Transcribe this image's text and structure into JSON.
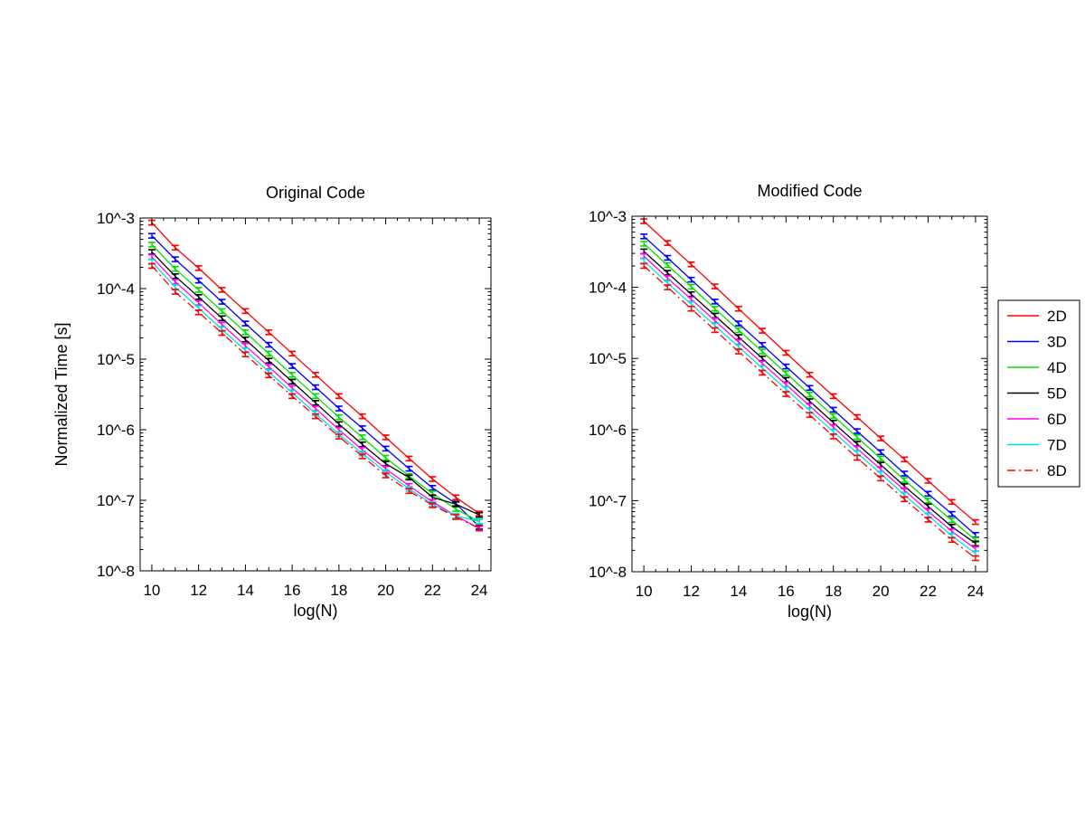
{
  "chart_data": [
    {
      "type": "line",
      "title": "Original Code",
      "xlabel": "log(N)",
      "ylabel": "Normalized Time [s]",
      "xlim": [
        9.5,
        24.5
      ],
      "x_ticks": [
        10,
        12,
        14,
        16,
        18,
        20,
        22,
        24
      ],
      "x_tick_labels": [
        "10",
        "12",
        "14",
        "16",
        "18",
        "20",
        "22",
        "24"
      ],
      "yscale": "log",
      "ylim": [
        1e-08,
        0.001
      ],
      "y_ticks": [
        0.001,
        0.0001,
        1e-05,
        1e-06,
        1e-07,
        1e-08
      ],
      "y_tick_labels": [
        "10^-3",
        "10^-4",
        "10^-5",
        "10^-6",
        "10^-7",
        "10^-8"
      ],
      "grid": false,
      "error_bars": true,
      "x": [
        10,
        11,
        12,
        13,
        14,
        15,
        16,
        17,
        18,
        19,
        20,
        21,
        22,
        23,
        24
      ],
      "series": [
        {
          "name": "2D",
          "color": "#ff0000",
          "dash": "solid",
          "values": [
            0.00086,
            0.00038,
            0.000195,
            9.6e-05,
            4.8e-05,
            2.4e-05,
            1.2e-05,
            6e-06,
            3e-06,
            1.55e-06,
            7.8e-07,
            3.9e-07,
            2e-07,
            1.1e-07,
            6.5e-08
          ]
        },
        {
          "name": "3D",
          "color": "#0000ff",
          "dash": "solid",
          "values": [
            0.00056,
            0.00026,
            0.00013,
            6.5e-05,
            3.2e-05,
            1.6e-05,
            8e-06,
            4e-06,
            2e-06,
            1.05e-06,
            5.4e-07,
            2.8e-07,
            1.5e-07,
            9e-08,
            4.2e-08
          ]
        },
        {
          "name": "4D",
          "color": "#00e000",
          "dash": "solid",
          "values": [
            0.00042,
            0.00019,
            9.6e-05,
            4.8e-05,
            2.4e-05,
            1.2e-05,
            6e-06,
            3e-06,
            1.5e-06,
            7.8e-07,
            4e-07,
            2.2e-07,
            1.25e-07,
            7.5e-08,
            5e-08
          ]
        },
        {
          "name": "5D",
          "color": "#000000",
          "dash": "solid",
          "values": [
            0.00033,
            0.00015,
            7.6e-05,
            3.8e-05,
            1.9e-05,
            9.5e-06,
            4.8e-06,
            2.4e-06,
            1.2e-06,
            6.2e-07,
            3.3e-07,
            2.1e-07,
            1.1e-07,
            8.8e-08,
            6.2e-08
          ]
        },
        {
          "name": "6D",
          "color": "#ff00ff",
          "dash": "solid",
          "values": [
            0.00028,
            0.000125,
            6.3e-05,
            3.1e-05,
            1.55e-05,
            7.8e-06,
            3.9e-06,
            2e-06,
            1e-06,
            5.2e-07,
            2.8e-07,
            1.6e-07,
            9.5e-08,
            6e-08,
            4e-08
          ]
        },
        {
          "name": "7D",
          "color": "#00e0e0",
          "dash": "solid",
          "values": [
            0.00024,
            0.000105,
            5.3e-05,
            2.65e-05,
            1.33e-05,
            6.6e-06,
            3.35e-06,
            1.7e-06,
            8.6e-07,
            4.6e-07,
            2.5e-07,
            1.45e-07,
            8.8e-08,
            6e-08,
            5e-08
          ]
        },
        {
          "name": "8D",
          "color": "#ff0000",
          "dash": "dashdot",
          "values": [
            0.00021,
            9e-05,
            4.6e-05,
            2.35e-05,
            1.17e-05,
            5.9e-06,
            3e-06,
            1.55e-06,
            8e-07,
            4.2e-07,
            2.25e-07,
            1.35e-07,
            8.5e-08,
            5.8e-08,
            4e-08
          ]
        }
      ]
    },
    {
      "type": "line",
      "title": "Modified Code",
      "xlabel": "log(N)",
      "ylabel": "",
      "xlim": [
        9.5,
        24.5
      ],
      "x_ticks": [
        10,
        12,
        14,
        16,
        18,
        20,
        22,
        24
      ],
      "x_tick_labels": [
        "10",
        "12",
        "14",
        "16",
        "18",
        "20",
        "22",
        "24"
      ],
      "yscale": "log",
      "ylim": [
        1e-08,
        0.001
      ],
      "y_ticks": [
        0.001,
        0.0001,
        1e-05,
        1e-06,
        1e-07,
        1e-08
      ],
      "y_tick_labels": [
        "10^-3",
        "10^-4",
        "10^-5",
        "10^-6",
        "10^-7",
        "10^-8"
      ],
      "grid": false,
      "error_bars": true,
      "legend_position": "outside-right",
      "x": [
        10,
        11,
        12,
        13,
        14,
        15,
        16,
        17,
        18,
        19,
        20,
        21,
        22,
        23,
        24
      ],
      "series": [
        {
          "name": "2D",
          "color": "#ff0000",
          "dash": "solid",
          "values": [
            0.00085,
            0.00042,
            0.00021,
            0.000103,
            5e-05,
            2.45e-05,
            1.2e-05,
            5.9e-06,
            2.95e-06,
            1.5e-06,
            7.5e-07,
            3.8e-07,
            1.9e-07,
            9.6e-08,
            5e-08
          ]
        },
        {
          "name": "3D",
          "color": "#0000ff",
          "dash": "solid",
          "values": [
            0.00052,
            0.00026,
            0.000128,
            6.3e-05,
            3.1e-05,
            1.55e-05,
            7.7e-06,
            3.85e-06,
            1.9e-06,
            9.5e-07,
            4.8e-07,
            2.4e-07,
            1.25e-07,
            6.5e-08,
            3.3e-08
          ]
        },
        {
          "name": "4D",
          "color": "#00e000",
          "dash": "solid",
          "values": [
            0.00041,
            0.000205,
            0.000102,
            5e-05,
            2.5e-05,
            1.25e-05,
            6.2e-06,
            3.1e-06,
            1.55e-06,
            7.8e-07,
            3.9e-07,
            1.95e-07,
            1e-07,
            5.3e-08,
            2.8e-08
          ]
        },
        {
          "name": "5D",
          "color": "#000000",
          "dash": "solid",
          "values": [
            0.00032,
            0.00016,
            8e-05,
            4e-05,
            2e-05,
            1e-05,
            5e-06,
            2.5e-06,
            1.25e-06,
            6.3e-07,
            3.2e-07,
            1.6e-07,
            8.3e-08,
            4.3e-08,
            2.5e-08
          ]
        },
        {
          "name": "6D",
          "color": "#ff00ff",
          "dash": "solid",
          "values": [
            0.000275,
            0.000135,
            6.8e-05,
            3.4e-05,
            1.7e-05,
            8.5e-06,
            4.3e-06,
            2.15e-06,
            1.08e-06,
            5.4e-07,
            2.75e-07,
            1.4e-07,
            7.1e-08,
            3.7e-08,
            2.1e-08
          ]
        },
        {
          "name": "7D",
          "color": "#00e0e0",
          "dash": "solid",
          "values": [
            0.000235,
            0.000115,
            5.8e-05,
            2.9e-05,
            1.45e-05,
            7.3e-06,
            3.7e-06,
            1.85e-06,
            9.3e-07,
            4.7e-07,
            2.4e-07,
            1.2e-07,
            6.2e-08,
            3.2e-08,
            1.8e-08
          ]
        },
        {
          "name": "8D",
          "color": "#ff0000",
          "dash": "dashdot",
          "values": [
            0.0002,
            0.0001,
            5e-05,
            2.5e-05,
            1.25e-05,
            6.3e-06,
            3.15e-06,
            1.6e-06,
            8e-07,
            4e-07,
            2.05e-07,
            1.05e-07,
            5.4e-08,
            2.8e-08,
            1.55e-08
          ]
        }
      ]
    }
  ]
}
